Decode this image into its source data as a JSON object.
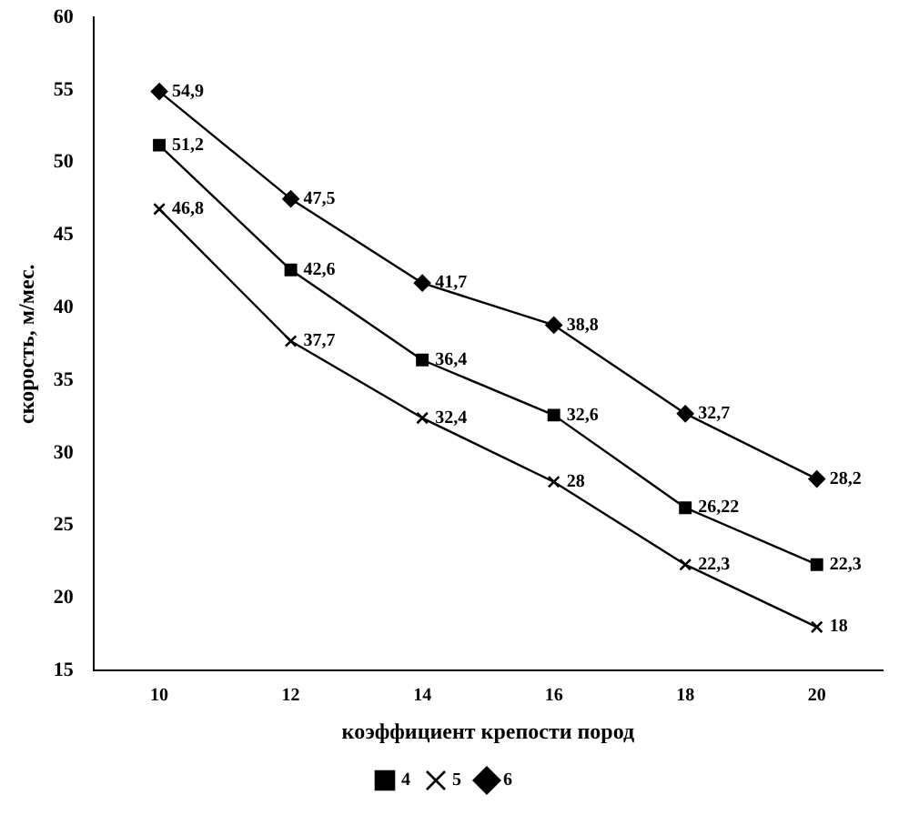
{
  "chart_data": {
    "type": "line",
    "xlabel": "коэффициент крепости пород",
    "ylabel": "скорость, м/мес.",
    "categories": [
      "10",
      "12",
      "14",
      "16",
      "18",
      "20"
    ],
    "ylim": [
      15,
      60
    ],
    "yticks": [
      15,
      20,
      25,
      30,
      35,
      40,
      45,
      50,
      55,
      60
    ],
    "grid": false,
    "legend": "bottom",
    "series": [
      {
        "name": "4",
        "color": "#000000",
        "marker": "square",
        "values": [
          51.2,
          42.6,
          36.4,
          32.6,
          26.22,
          22.3
        ],
        "value_labels": [
          "51,2",
          "42,6",
          "36,4",
          "32,6",
          "26,22",
          "22,3"
        ]
      },
      {
        "name": "5",
        "color": "#000000",
        "marker": "cross",
        "values": [
          46.8,
          37.7,
          32.4,
          28,
          22.3,
          18
        ],
        "value_labels": [
          "46,8",
          "37,7",
          "32,4",
          "28",
          "22,3",
          "18"
        ]
      },
      {
        "name": "6",
        "color": "#000000",
        "marker": "diamond",
        "values": [
          54.9,
          47.5,
          41.7,
          38.8,
          32.7,
          28.2
        ],
        "value_labels": [
          "54,9",
          "47,5",
          "41,7",
          "38,8",
          "32,7",
          "28,2"
        ]
      }
    ]
  }
}
